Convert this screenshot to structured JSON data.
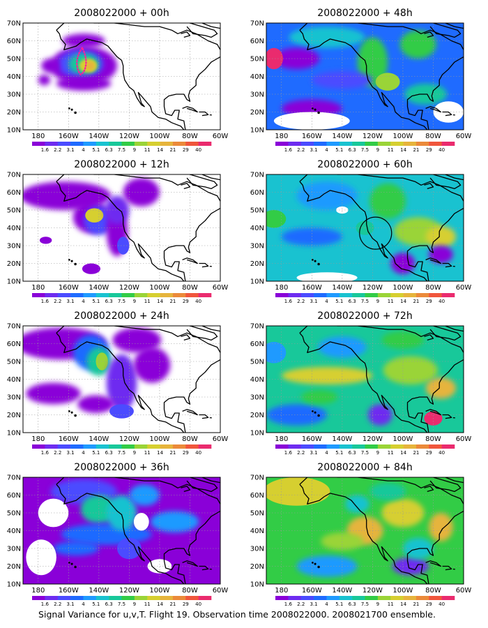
{
  "figure": {
    "caption": "Signal Variance for u,v,T. Flight 19. Observation time 2008022000. 2008021700 ensemble.",
    "colorbar": {
      "labels": [
        "1.6",
        "2.2",
        "3.1",
        "4",
        "5.1",
        "6.3",
        "7.5",
        "9",
        "11",
        "14",
        "21",
        "29",
        "40"
      ],
      "colors": [
        "#8a00d8",
        "#6e2cf0",
        "#4b4bff",
        "#1f6bff",
        "#1f9aff",
        "#19c2d0",
        "#18c89a",
        "#32cc46",
        "#9ad437",
        "#d6cf30",
        "#e6b43c",
        "#eb8a3a",
        "#f0563c",
        "#ea2b6e"
      ]
    },
    "x_ticks": [
      "180",
      "160W",
      "140W",
      "120W",
      "100W",
      "80W",
      "60W"
    ],
    "y_ticks": [
      "10N",
      "20N",
      "30N",
      "40N",
      "50N",
      "60N",
      "70N"
    ],
    "panels": [
      {
        "title": "2008022000 + 00h",
        "hour": 0
      },
      {
        "title": "2008022000 + 48h",
        "hour": 48
      },
      {
        "title": "2008022000 + 12h",
        "hour": 12
      },
      {
        "title": "2008022000 + 60h",
        "hour": 60
      },
      {
        "title": "2008022000 + 24h",
        "hour": 24
      },
      {
        "title": "2008022000 + 72h",
        "hour": 72
      },
      {
        "title": "2008022000 + 36h",
        "hour": 36
      },
      {
        "title": "2008022000 + 84h",
        "hour": 84
      }
    ]
  }
}
